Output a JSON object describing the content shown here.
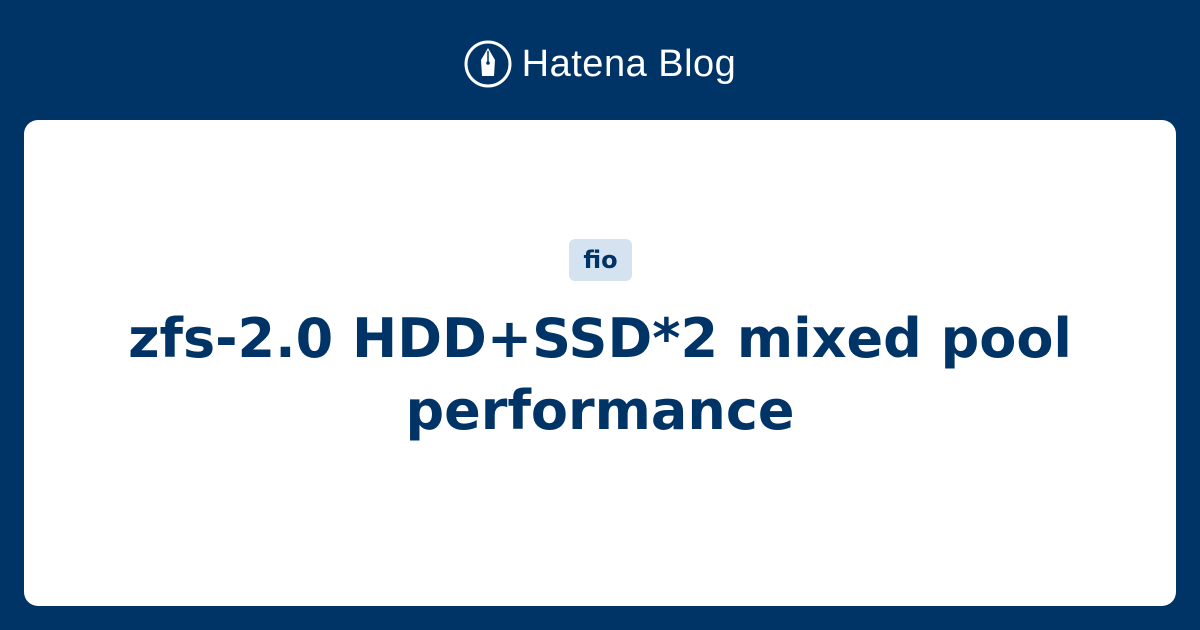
{
  "brand": {
    "name": "Hatena Blog",
    "icon": "pen-nib-icon"
  },
  "article": {
    "tag": "fio",
    "title": "zfs-2.0 HDD+SSD*2 mixed pool performance"
  },
  "colors": {
    "background": "#003366",
    "card": "#ffffff",
    "tag_background": "#d5e3f0",
    "text": "#003366"
  }
}
